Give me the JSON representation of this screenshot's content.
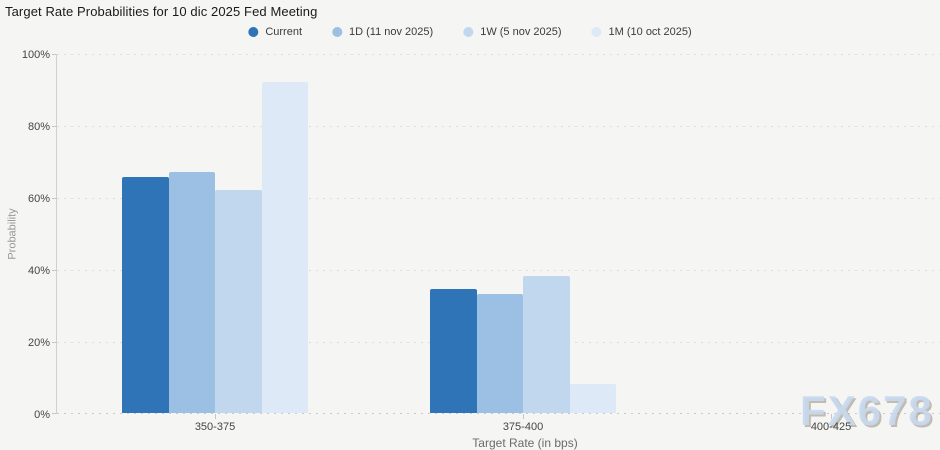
{
  "watermark": "FX678",
  "chart_data": {
    "type": "bar",
    "title": "Target Rate Probabilities for 10 dic 2025 Fed Meeting",
    "xlabel": "Target Rate (in bps)",
    "ylabel": "Probability",
    "categories": [
      "350-375",
      "375-400",
      "400-425"
    ],
    "series": [
      {
        "name": "Current",
        "color": "#2f74b6",
        "values": [
          65.5,
          34.5,
          0
        ]
      },
      {
        "name": "1D (11 nov 2025)",
        "color": "#9cc0e4",
        "values": [
          67.0,
          33.0,
          0
        ]
      },
      {
        "name": "1W (5 nov 2025)",
        "color": "#c0d7ee",
        "values": [
          62.0,
          38.0,
          0
        ]
      },
      {
        "name": "1M (10 oct 2025)",
        "color": "#dde9f6",
        "values": [
          91.9,
          8.1,
          0
        ]
      }
    ],
    "ylim": [
      0,
      100
    ],
    "ytick_step": 20,
    "yticks": [
      "0%",
      "20%",
      "40%",
      "60%",
      "80%",
      "100%"
    ],
    "grid": "dotted-horizontal",
    "legend_position": "top"
  }
}
